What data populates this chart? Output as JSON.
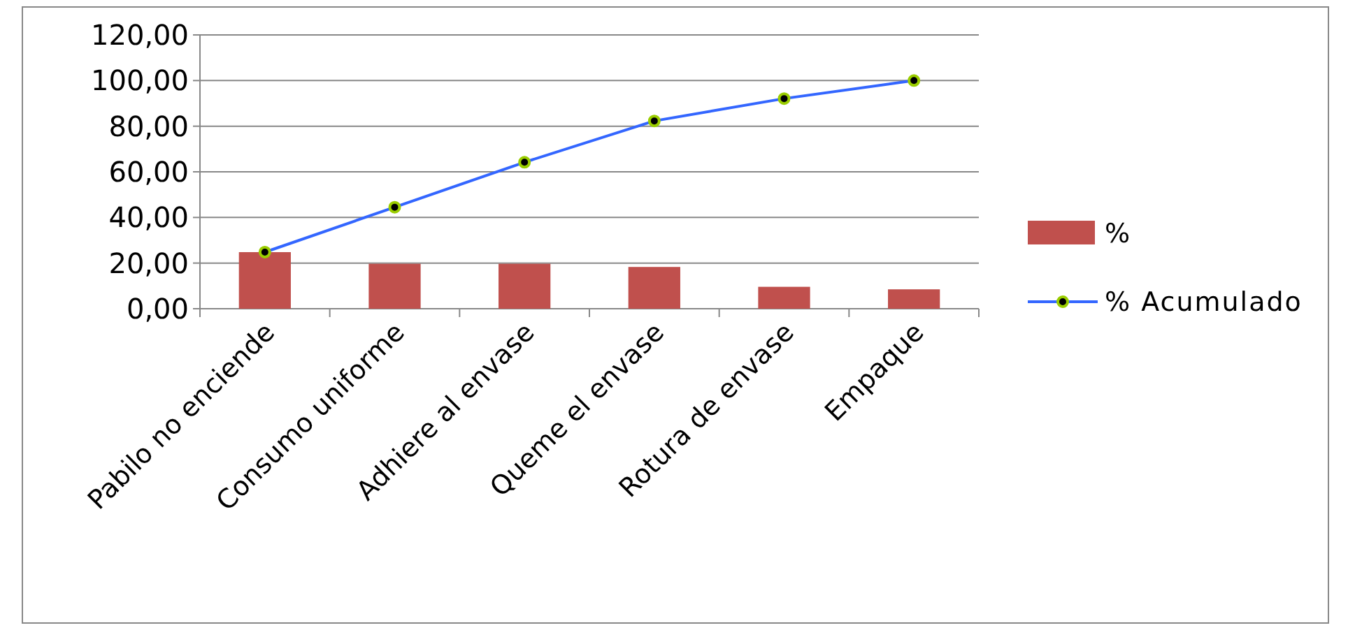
{
  "chart_data": {
    "type": "bar",
    "categories": [
      "Pabilo no enciende",
      "Consumo uniforme",
      "Adhiere al envase",
      "Queme el envase",
      "Rotura de envase",
      "Empaque"
    ],
    "series": [
      {
        "name": "%",
        "color": "#c0504d",
        "values": [
          24.8,
          19.7,
          19.7,
          18.3,
          9.6,
          8.5
        ]
      },
      {
        "name": "% Acumulado",
        "type": "line",
        "color": "#3366ff",
        "values": [
          24.8,
          44.5,
          64.2,
          82.3,
          92.1,
          100
        ]
      }
    ],
    "ylim": [
      0,
      120
    ],
    "yticks": [
      {
        "value": 0,
        "label": "0,00"
      },
      {
        "value": 20,
        "label": "20,00"
      },
      {
        "value": 40,
        "label": "40,00"
      },
      {
        "value": 60,
        "label": "60,00"
      },
      {
        "value": 80,
        "label": "80,00"
      },
      {
        "value": 100,
        "label": "100,00"
      },
      {
        "value": 120,
        "label": "120,00"
      }
    ],
    "grid": "y",
    "legend": "right",
    "marker": "circle"
  }
}
